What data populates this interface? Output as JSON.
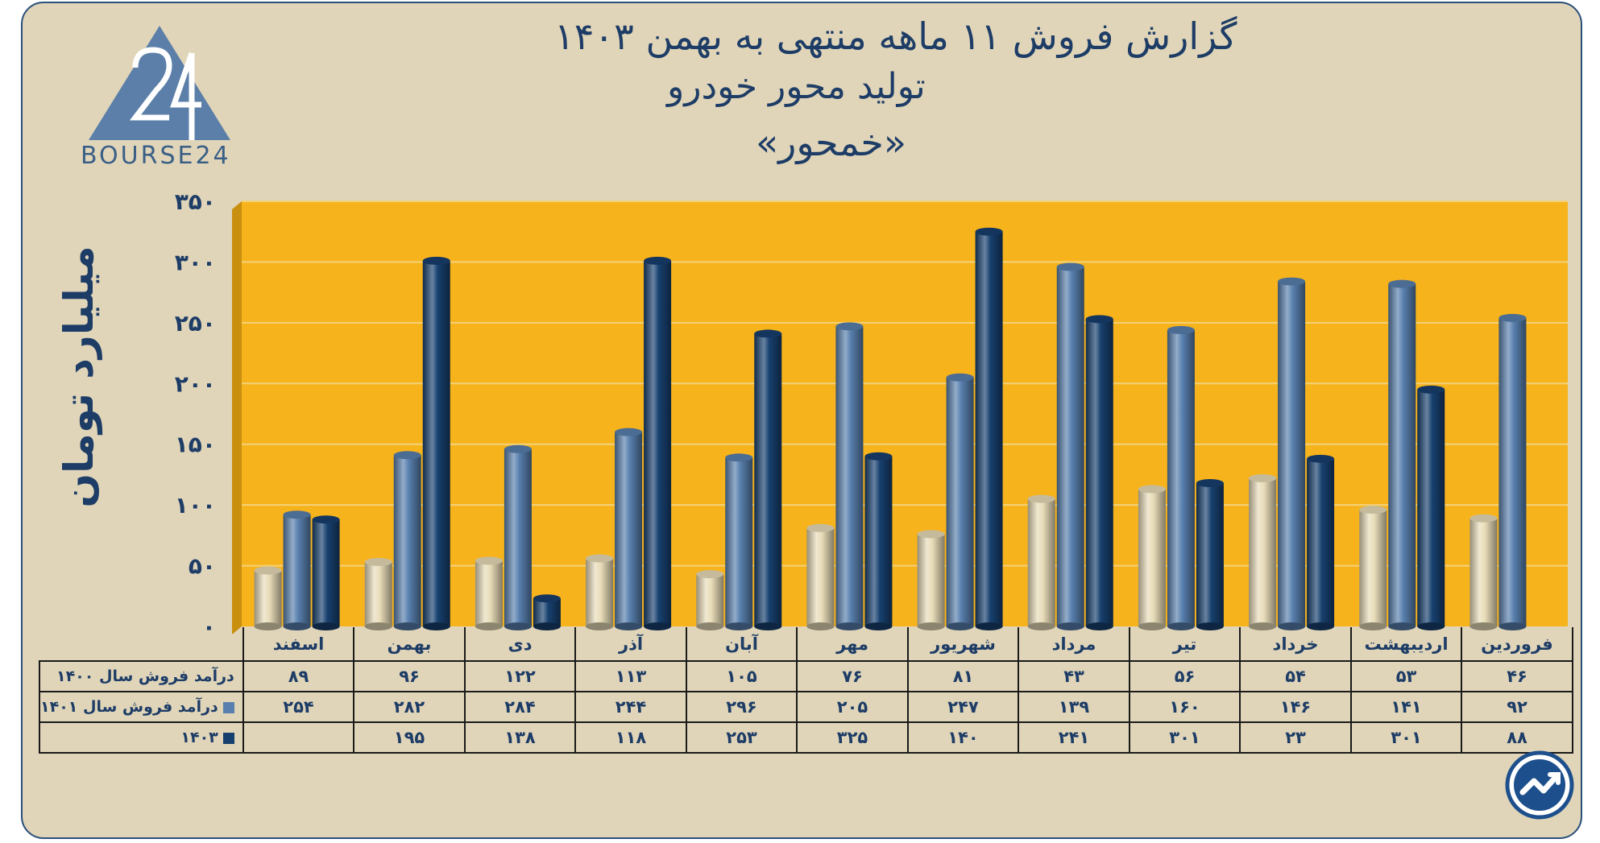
{
  "title_lines": [
    "گزارش  فروش ۱۱ ماهه منتهی به بهمن ۱۴۰۳",
    "تولید محور خودرو",
    "«خمحور»"
  ],
  "logo_text": "BOURSE24",
  "colors": {
    "s1400": "#e8dcb8",
    "s1401": "#587fad",
    "s1403": "#17406e",
    "plot_bg": "#f7b31c",
    "grid": "#f3d27a"
  },
  "chart_data": {
    "type": "bar",
    "title": "گزارش  فروش ۱۱ ماهه منتهی به بهمن ۱۴۰۳ تولید محور خودرو «خمحور»",
    "ylabel": "میلیارد تومان",
    "xlabel": "",
    "ylim": [
      0,
      350
    ],
    "yticks": [
      0,
      50,
      100,
      150,
      200,
      250,
      300,
      350
    ],
    "ytick_labels": [
      "۰",
      "۵۰",
      "۱۰۰",
      "۱۵۰",
      "۲۰۰",
      "۲۵۰",
      "۳۰۰",
      "۳۵۰"
    ],
    "categories": [
      "فروردین",
      "اردیبهشت",
      "خرداد",
      "تیر",
      "مرداد",
      "شهریور",
      "مهر",
      "آبان",
      "آذر",
      "دی",
      "بهمن",
      "اسفند"
    ],
    "series": [
      {
        "name": "درآمد فروش سال ۱۴۰۰",
        "values": [
          46,
          53,
          54,
          56,
          43,
          81,
          76,
          105,
          113,
          122,
          96,
          89
        ],
        "labels": [
          "۴۶",
          "۵۳",
          "۵۴",
          "۵۶",
          "۴۳",
          "۸۱",
          "۷۶",
          "۱۰۵",
          "۱۱۳",
          "۱۲۲",
          "۹۶",
          "۸۹"
        ]
      },
      {
        "name": "درآمد فروش سال ۱۴۰۱",
        "values": [
          92,
          141,
          146,
          160,
          139,
          247,
          205,
          296,
          244,
          284,
          282,
          254
        ],
        "labels": [
          "۹۲",
          "۱۴۱",
          "۱۴۶",
          "۱۶۰",
          "۱۳۹",
          "۲۴۷",
          "۲۰۵",
          "۲۹۶",
          "۲۴۴",
          "۲۸۴",
          "۲۸۲",
          "۲۵۴"
        ]
      },
      {
        "name": "۱۴۰۳",
        "values": [
          88,
          301,
          23,
          301,
          241,
          140,
          325,
          253,
          118,
          138,
          195,
          null
        ],
        "labels": [
          "۸۸",
          "۳۰۱",
          "۲۳",
          "۳۰۱",
          "۲۴۱",
          "۱۴۰",
          "۳۲۵",
          "۲۵۳",
          "۱۱۸",
          "۱۳۸",
          "۱۹۵",
          ""
        ]
      }
    ],
    "grid": true,
    "legend": "table"
  }
}
